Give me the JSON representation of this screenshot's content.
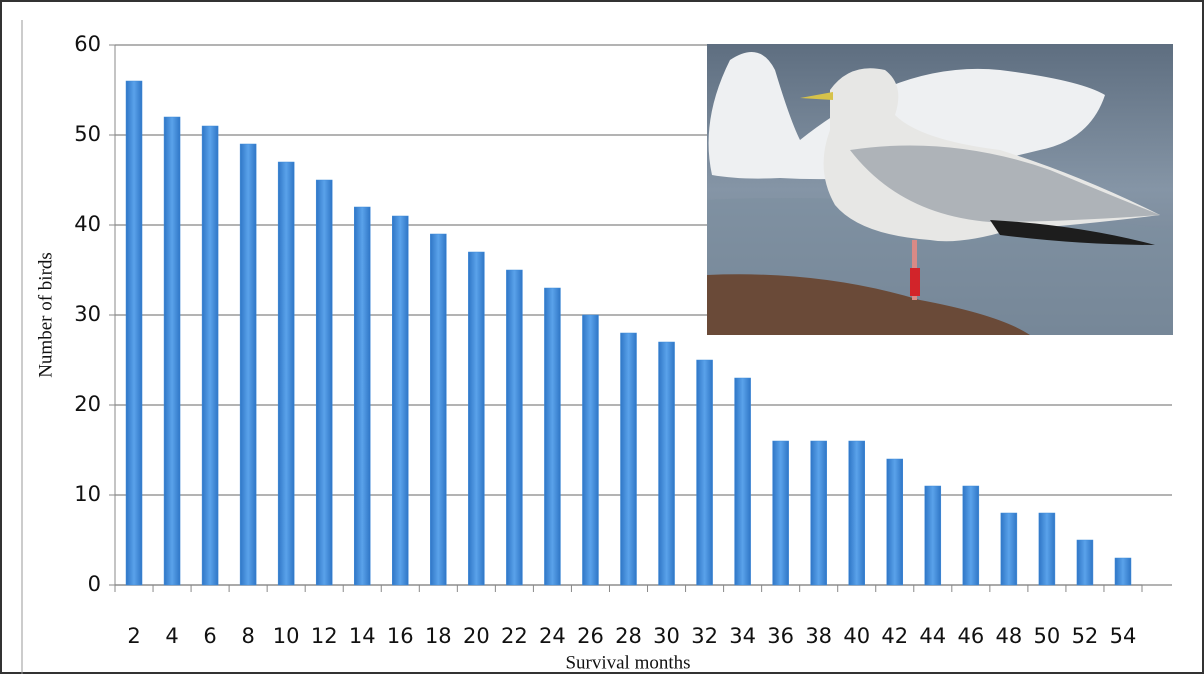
{
  "chart_data": {
    "type": "bar",
    "categories": [
      "2",
      "4",
      "6",
      "8",
      "10",
      "12",
      "14",
      "16",
      "18",
      "20",
      "22",
      "24",
      "26",
      "28",
      "30",
      "32",
      "34",
      "36",
      "38",
      "40",
      "42",
      "44",
      "46",
      "48",
      "50",
      "52",
      "54"
    ],
    "values": [
      56,
      52,
      51,
      49,
      47,
      45,
      42,
      41,
      39,
      37,
      35,
      33,
      30,
      28,
      27,
      25,
      23,
      16,
      16,
      16,
      14,
      11,
      11,
      8,
      8,
      5,
      3
    ],
    "color": "#3f8ad8",
    "ylim": [
      0,
      60
    ],
    "yticks": [
      0,
      10,
      20,
      30,
      40,
      50,
      60
    ],
    "grid": true,
    "y_label": "Number of birds",
    "x_label": "Survival months"
  }
}
